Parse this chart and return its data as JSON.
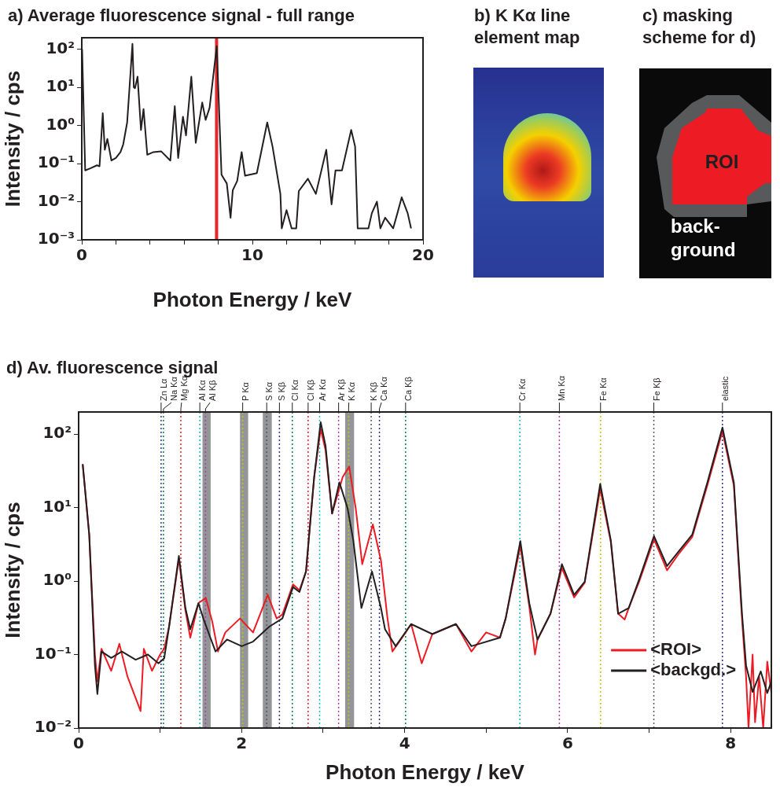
{
  "chart_data": [
    {
      "type": "line",
      "title": "a) Average fluorescence signal - full range",
      "xlabel": "Photon Energy / keV",
      "ylabel": "Intensity / cps",
      "log": "y",
      "xlim": [
        0,
        20
      ],
      "xticks": [
        0,
        {
          "value": 2,
          "label": null
        },
        {
          "value": 4,
          "label": null
        },
        {
          "value": 6,
          "label": null
        },
        {
          "value": 8,
          "label": null
        },
        10,
        {
          "value": 12,
          "label": null
        },
        {
          "value": 14,
          "label": null
        },
        {
          "value": 16,
          "label": null
        },
        {
          "value": 18,
          "label": null
        },
        20
      ],
      "ylim": [
        0.001,
        200
      ],
      "yticks": [
        {
          "value": 0.001,
          "label": "10⁻³"
        },
        {
          "value": 0.01,
          "label": "10⁻²"
        },
        {
          "value": 0.1,
          "label": "10⁻¹"
        },
        {
          "value": 1,
          "label": "10⁰"
        },
        {
          "value": 10,
          "label": "10¹"
        },
        {
          "value": 100,
          "label": "10²"
        }
      ],
      "series": [
        {
          "color": "#231f20",
          "x": [
            0.02,
            0.2,
            0.5,
            0.89,
            1.04,
            1.23,
            1.35,
            1.5,
            1.74,
            2.0,
            2.27,
            2.43,
            2.66,
            2.97,
            3.05,
            3.12,
            3.27,
            3.47,
            3.62,
            3.84,
            4.2,
            4.65,
            5.19,
            5.45,
            5.65,
            5.93,
            6.11,
            6.42,
            6.68,
            7.06,
            7.26,
            7.49,
            7.91,
            8.19,
            8.5,
            8.72,
            8.85,
            9.11,
            9.37,
            9.57,
            10.26,
            10.87,
            11.18,
            11.64,
            11.72,
            12.0,
            12.3,
            12.57,
            12.72,
            13.25,
            13.72,
            14.33,
            14.64,
            14.87,
            15.25,
            15.79,
            16.02,
            16.17,
            16.8,
            17.0,
            17.3,
            17.5,
            17.78,
            18.25,
            18.5,
            18.75,
            19.1,
            19.3
          ],
          "values": [
            100,
            0.066,
            0.075,
            0.09,
            0.085,
            2.1,
            0.23,
            0.44,
            0.12,
            0.14,
            0.2,
            0.32,
            1.2,
            138,
            10,
            9.5,
            19,
            0.76,
            2.7,
            0.17,
            0.2,
            0.21,
            0.12,
            3.2,
            0.14,
            1.7,
            0.55,
            19,
            0.35,
            4,
            1.4,
            2.9,
            120,
            0.051,
            0.03,
            0.0038,
            0.02,
            0.035,
            0.2,
            0.048,
            0.056,
            1.2,
            0.28,
            0.016,
            0.002,
            0.006,
            0.002,
            0.002,
            0.019,
            0.04,
            0.016,
            0.23,
            0.0085,
            0.066,
            0.066,
            0.76,
            0.28,
            0.002,
            0.002,
            0.005,
            0.01,
            0.002,
            0.0038,
            0.002,
            0.005,
            0.013,
            0.005,
            0.002
          ]
        }
      ],
      "ref_lines": [
        {
          "axis": "x",
          "value": 7.9,
          "color": "#e8262b",
          "line_style": "solid"
        }
      ]
    },
    {
      "type": "other",
      "title": "b) K Kα line element map"
    },
    {
      "type": "other",
      "title": "c) masking scheme for d)",
      "annotations": [
        "ROI",
        "back-ground"
      ]
    },
    {
      "type": "line",
      "title": "d) Av. fluorescence signal",
      "xlabel": "Photon Energy / keV",
      "ylabel": "Intensity / cps",
      "log": "y",
      "legend": "bottom right",
      "xlim": [
        0,
        8.5
      ],
      "xticks": [
        0,
        {
          "value": 1,
          "label": null
        },
        2,
        {
          "value": 3,
          "label": null
        },
        4,
        {
          "value": 5,
          "label": null
        },
        6,
        {
          "value": 7,
          "label": null
        },
        8
      ],
      "ylim": [
        0.01,
        200
      ],
      "yticks": [
        {
          "value": 0.01,
          "label": "10⁻²"
        },
        {
          "value": 0.1,
          "label": "10⁻¹"
        },
        {
          "value": 1,
          "label": "10⁰"
        },
        {
          "value": 10,
          "label": "10¹"
        },
        {
          "value": 100,
          "label": "10²"
        }
      ],
      "series": [
        {
          "name": "<ROI>",
          "color": "#ed1c24",
          "x": [
            0.05,
            0.13,
            0.2,
            0.23,
            0.28,
            0.4,
            0.5,
            0.6,
            0.76,
            0.8,
            0.9,
            1.0,
            1.05,
            1.11,
            1.23,
            1.31,
            1.37,
            1.47,
            1.56,
            1.64,
            1.71,
            1.8,
            1.98,
            2.14,
            2.32,
            2.43,
            2.5,
            2.63,
            2.71,
            2.79,
            2.89,
            2.97,
            3.03,
            3.11,
            3.24,
            3.32,
            3.4,
            3.48,
            3.61,
            3.71,
            3.79,
            3.85,
            4.0,
            4.08,
            4.21,
            4.34,
            4.63,
            4.82,
            5.0,
            5.17,
            5.24,
            5.42,
            5.53,
            5.6,
            5.63,
            5.79,
            5.93,
            6.08,
            6.21,
            6.4,
            6.53,
            6.62,
            6.7,
            6.75,
            6.88,
            7.06,
            7.22,
            7.37,
            7.53,
            7.72,
            7.9,
            8.04,
            8.14,
            8.19,
            8.22,
            8.27,
            8.3,
            8.35,
            8.4,
            8.45,
            8.5
          ],
          "values": [
            39,
            4.3,
            0.1,
            0.043,
            0.12,
            0.06,
            0.14,
            0.05,
            0.017,
            0.12,
            0.06,
            0.1,
            0.12,
            0.24,
            2.0,
            0.4,
            0.17,
            0.5,
            0.59,
            0.28,
            0.11,
            0.2,
            0.31,
            0.2,
            0.65,
            0.31,
            0.35,
            0.9,
            0.75,
            1.35,
            26,
            117,
            60,
            8.3,
            26,
            36,
            9.8,
            1.7,
            5.9,
            1.9,
            0.31,
            0.11,
            0.19,
            0.26,
            0.076,
            0.19,
            0.26,
            0.11,
            0.2,
            0.17,
            0.31,
            3.0,
            0.45,
            0.1,
            0.16,
            0.36,
            1.5,
            0.6,
            0.95,
            18,
            3.4,
            0.36,
            0.3,
            0.43,
            1.0,
            3.7,
            1.4,
            2.4,
            4.0,
            21,
            110,
            20,
            0.3,
            0.05,
            0.01,
            0.1,
            0.012,
            0.05,
            0.01,
            0.08,
            0.03
          ]
        },
        {
          "name": "<backgd.>",
          "color": "#231f20",
          "x": [
            0.05,
            0.13,
            0.2,
            0.23,
            0.28,
            0.4,
            0.53,
            0.7,
            0.85,
            0.98,
            1.05,
            1.11,
            1.23,
            1.31,
            1.37,
            1.47,
            1.53,
            1.6,
            1.68,
            1.82,
            2.0,
            2.14,
            2.34,
            2.5,
            2.63,
            2.71,
            2.79,
            2.89,
            2.97,
            3.03,
            3.11,
            3.2,
            3.3,
            3.37,
            3.47,
            3.6,
            3.71,
            3.76,
            3.89,
            4.08,
            4.34,
            4.63,
            4.82,
            5.17,
            5.24,
            5.42,
            5.53,
            5.63,
            5.79,
            5.93,
            6.08,
            6.21,
            6.4,
            6.53,
            6.62,
            6.75,
            6.88,
            7.06,
            7.22,
            7.37,
            7.53,
            7.72,
            7.9,
            8.04,
            8.14,
            8.19,
            8.27,
            8.37,
            8.45,
            8.5
          ],
          "values": [
            39,
            4.3,
            0.071,
            0.029,
            0.11,
            0.09,
            0.11,
            0.085,
            0.1,
            0.076,
            0.089,
            0.24,
            2.2,
            0.43,
            0.22,
            0.5,
            0.31,
            0.19,
            0.11,
            0.16,
            0.13,
            0.15,
            0.24,
            0.31,
            0.83,
            0.71,
            1.35,
            26,
            145,
            69,
            8.3,
            22,
            9.8,
            3.6,
            0.43,
            1.35,
            0.43,
            0.22,
            0.13,
            0.26,
            0.19,
            0.26,
            0.13,
            0.17,
            0.31,
            3.5,
            0.5,
            0.16,
            0.36,
            1.7,
            0.65,
            0.98,
            21,
            3.6,
            0.36,
            0.43,
            1.07,
            4.1,
            1.6,
            2.6,
            4.3,
            23,
            123,
            22,
            0.36,
            0.071,
            0.031,
            0.059,
            0.03,
            0.043
          ]
        }
      ],
      "bands": [
        {
          "axis": "x",
          "from": 1.52,
          "to": 1.62,
          "color": "#939598"
        },
        {
          "axis": "x",
          "from": 1.98,
          "to": 2.08,
          "color": "#939598"
        },
        {
          "axis": "x",
          "from": 2.26,
          "to": 2.37,
          "color": "#939598"
        },
        {
          "axis": "x",
          "from": 3.27,
          "to": 3.38,
          "color": "#939598"
        }
      ],
      "ref_lines": [
        {
          "axis": "x",
          "value": 1.012,
          "label": "Zn Lα",
          "color": "#2e3192",
          "line_style": "dotted"
        },
        {
          "axis": "x",
          "value": 1.041,
          "label": "Na Kα",
          "color": "#00833e",
          "line_style": "dotted"
        },
        {
          "axis": "x",
          "value": 1.254,
          "label": "Mg Kα",
          "color": "#ed1c24",
          "line_style": "dotted"
        },
        {
          "axis": "x",
          "value": 1.487,
          "label": "Al Kα",
          "color": "#00c0c8",
          "line_style": "dotted"
        },
        {
          "axis": "x",
          "value": 1.557,
          "label": "Al Kβ",
          "color": "#b23aa6",
          "line_style": "dotted"
        },
        {
          "axis": "x",
          "value": 2.013,
          "label": "P Kα",
          "color": "#c8c800",
          "line_style": "dotted"
        },
        {
          "axis": "x",
          "value": 2.308,
          "label": "S Kα",
          "color": "#58595b",
          "line_style": "dotted"
        },
        {
          "axis": "x",
          "value": 2.464,
          "label": "S Kβ",
          "color": "#2e3192",
          "line_style": "dotted"
        },
        {
          "axis": "x",
          "value": 2.622,
          "label": "Cl Kα",
          "color": "#00833e",
          "line_style": "dotted"
        },
        {
          "axis": "x",
          "value": 2.816,
          "label": "Cl Kβ",
          "color": "#ed1c24",
          "line_style": "dotted"
        },
        {
          "axis": "x",
          "value": 2.957,
          "label": "Ar Kα",
          "color": "#00c0c8",
          "line_style": "dotted"
        },
        {
          "axis": "x",
          "value": 3.19,
          "label": "Ar Kβ",
          "color": "#b23aa6",
          "line_style": "dotted"
        },
        {
          "axis": "x",
          "value": 3.313,
          "label": "K Kα",
          "color": "#c8c800",
          "line_style": "dotted"
        },
        {
          "axis": "x",
          "value": 3.59,
          "label": "K Kβ",
          "color": "#58595b",
          "line_style": "dotted"
        },
        {
          "axis": "x",
          "value": 3.691,
          "label": "Ca Kα",
          "color": "#2e3192",
          "line_style": "dotted"
        },
        {
          "axis": "x",
          "value": 4.012,
          "label": "Ca Kβ",
          "color": "#00833e",
          "line_style": "dotted"
        },
        {
          "axis": "x",
          "value": 5.414,
          "label": "Cr Kα",
          "color": "#00c0c8",
          "line_style": "dotted"
        },
        {
          "axis": "x",
          "value": 5.899,
          "label": "Mn Kα",
          "color": "#b23aa6",
          "line_style": "dotted"
        },
        {
          "axis": "x",
          "value": 6.404,
          "label": "Fe Kα",
          "color": "#c8c800",
          "line_style": "dotted"
        },
        {
          "axis": "x",
          "value": 7.058,
          "label": "Fe Kβ",
          "color": "#58595b",
          "line_style": "dotted"
        },
        {
          "axis": "x",
          "value": 7.9,
          "label": "elastic",
          "color": "#2e3192",
          "line_style": "dotted"
        }
      ]
    }
  ]
}
